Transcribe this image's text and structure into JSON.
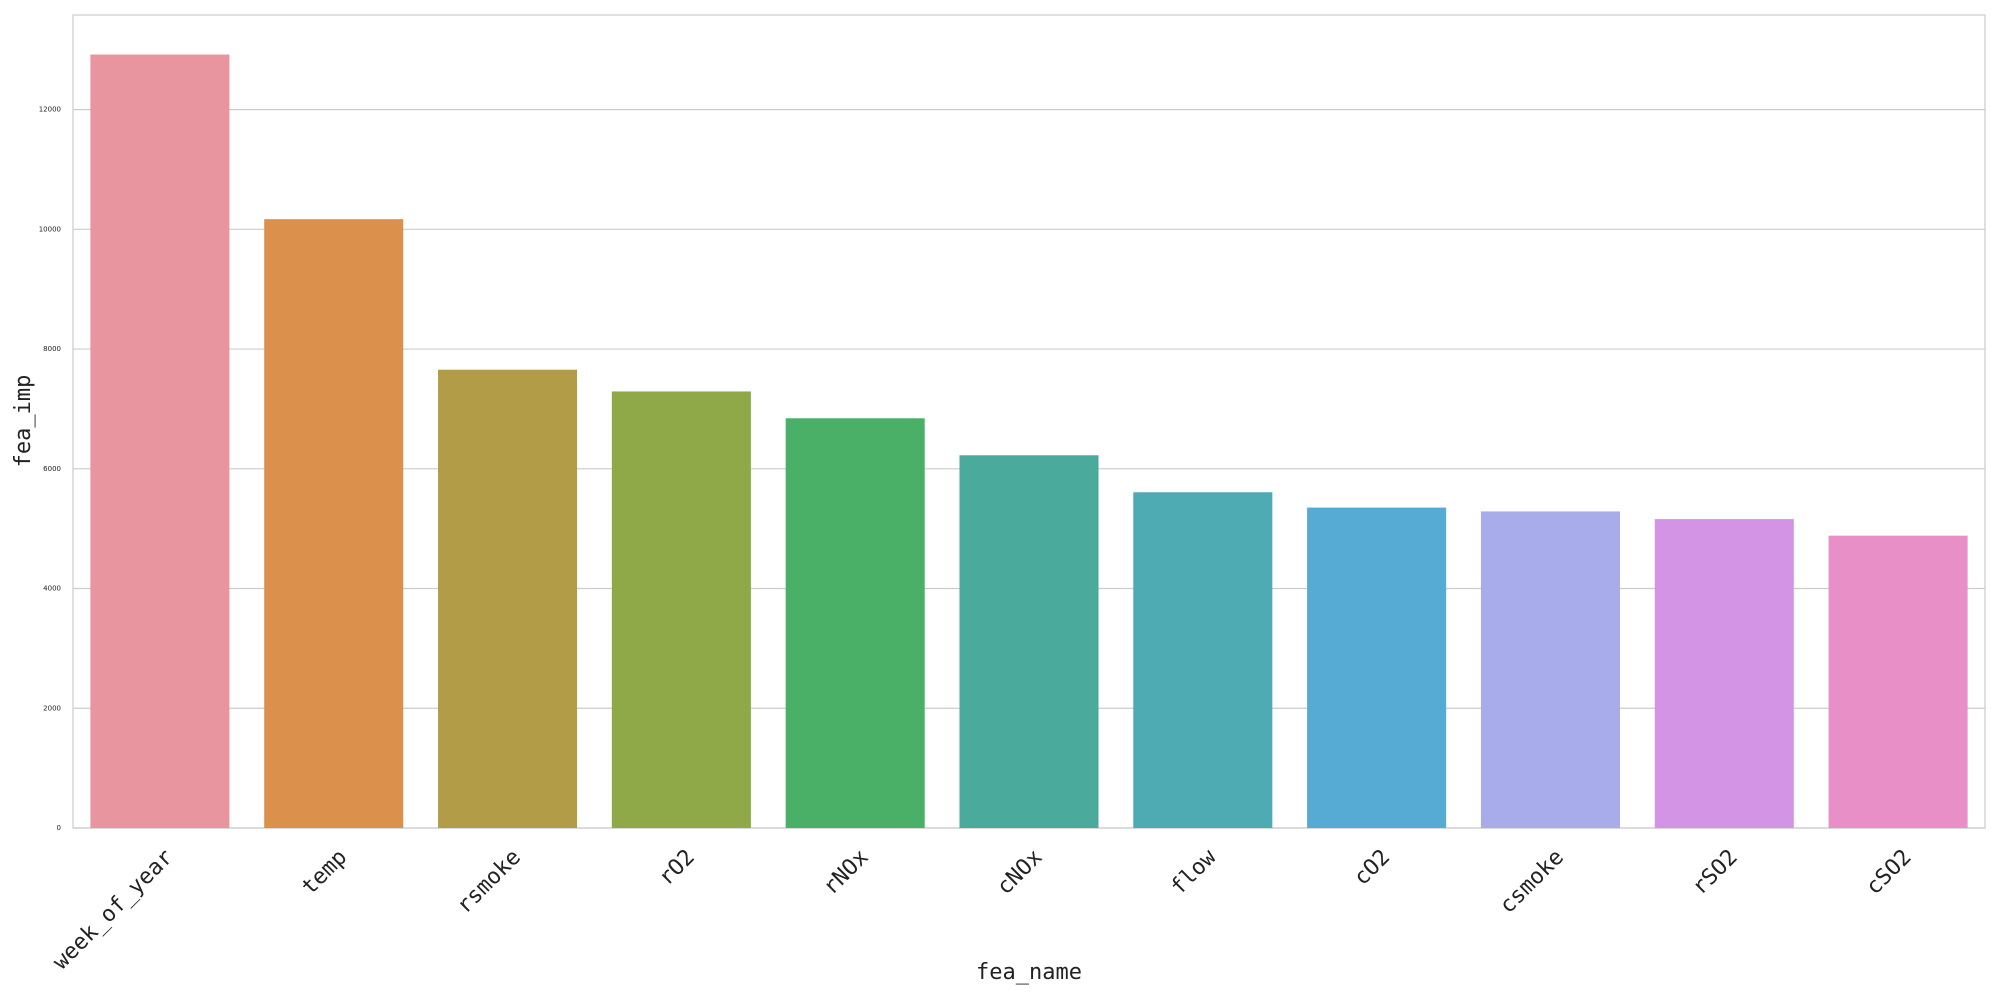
{
  "chart_data": {
    "type": "bar",
    "x_label": "fea_name",
    "y_label": "fea_imp",
    "categories": [
      "week_of_year",
      "temp",
      "rsmoke",
      "rO2",
      "rNOx",
      "cNOx",
      "flow",
      "cO2",
      "csmoke",
      "rSO2",
      "cSO2"
    ],
    "values": [
      12920,
      10170,
      7655,
      7292,
      6844,
      6226,
      5608,
      5352,
      5288,
      5160,
      4883
    ],
    "colors": [
      "#e8959f",
      "#db904c",
      "#b29c48",
      "#8fa848",
      "#4ab068",
      "#4aab9c",
      "#4eaab3",
      "#55abd4",
      "#a9acea",
      "#d494e6",
      "#e88fc8"
    ],
    "ylim": [
      0,
      13580
    ],
    "yticks": [
      0,
      2000,
      4000,
      6000,
      8000,
      10000,
      12000
    ],
    "grid": true
  }
}
